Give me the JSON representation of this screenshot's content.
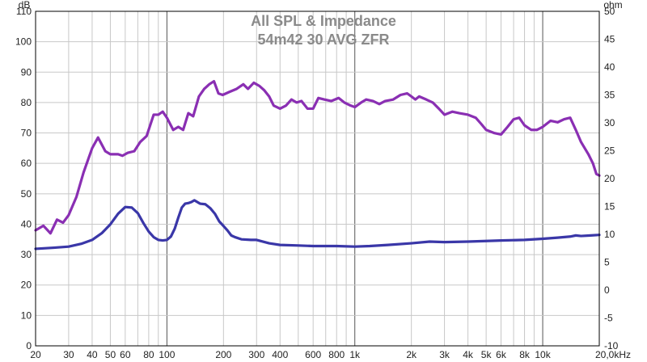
{
  "chart_data": {
    "type": "line",
    "title": "All SPL & Impedance",
    "subtitle": "54m42 30 AVG ZFR",
    "left_unit": "dB",
    "right_unit": "ohm",
    "x_scale": "log",
    "xlim": [
      20,
      20000
    ],
    "ylim_left": [
      0,
      110
    ],
    "ylim_right": [
      -10,
      50
    ],
    "grid": true,
    "x_ticks": [
      {
        "v": 20,
        "label": "20"
      },
      {
        "v": 30,
        "label": "30"
      },
      {
        "v": 40,
        "label": "40"
      },
      {
        "v": 50,
        "label": "50"
      },
      {
        "v": 60,
        "label": "60"
      },
      {
        "v": 80,
        "label": "80"
      },
      {
        "v": 100,
        "label": "100"
      },
      {
        "v": 200,
        "label": "200"
      },
      {
        "v": 300,
        "label": "300"
      },
      {
        "v": 400,
        "label": "400"
      },
      {
        "v": 600,
        "label": "600"
      },
      {
        "v": 800,
        "label": "800"
      },
      {
        "v": 1000,
        "label": "1k"
      },
      {
        "v": 2000,
        "label": "2k"
      },
      {
        "v": 3000,
        "label": "3k"
      },
      {
        "v": 4000,
        "label": "4k"
      },
      {
        "v": 5000,
        "label": "5k"
      },
      {
        "v": 6000,
        "label": "6k"
      },
      {
        "v": 8000,
        "label": "8k"
      },
      {
        "v": 10000,
        "label": "10k"
      },
      {
        "v": 20000,
        "label": "20,0kHz"
      }
    ],
    "left_ticks": [
      0,
      10,
      20,
      30,
      40,
      50,
      60,
      70,
      80,
      90,
      100,
      110
    ],
    "right_ticks": [
      -10,
      -5,
      0,
      5,
      10,
      15,
      20,
      25,
      30,
      35,
      40,
      45,
      50
    ],
    "series": [
      {
        "color": "#8a2fb3",
        "axis": "left",
        "points": [
          [
            20,
            38
          ],
          [
            22,
            39.5
          ],
          [
            24,
            37
          ],
          [
            26,
            41.5
          ],
          [
            28,
            40.5
          ],
          [
            30,
            43
          ],
          [
            33,
            49
          ],
          [
            36,
            57
          ],
          [
            40,
            65
          ],
          [
            43,
            68.5
          ],
          [
            47,
            64
          ],
          [
            50,
            63
          ],
          [
            55,
            63
          ],
          [
            58,
            62.5
          ],
          [
            62,
            63.5
          ],
          [
            67,
            64
          ],
          [
            72,
            67
          ],
          [
            78,
            69
          ],
          [
            85,
            76
          ],
          [
            90,
            76
          ],
          [
            95,
            77
          ],
          [
            100,
            75
          ],
          [
            108,
            71
          ],
          [
            115,
            72
          ],
          [
            122,
            71
          ],
          [
            130,
            76.5
          ],
          [
            138,
            75.5
          ],
          [
            148,
            82
          ],
          [
            158,
            84.5
          ],
          [
            168,
            86
          ],
          [
            178,
            87
          ],
          [
            188,
            83
          ],
          [
            198,
            82.5
          ],
          [
            215,
            83.5
          ],
          [
            235,
            84.5
          ],
          [
            255,
            86
          ],
          [
            270,
            84.5
          ],
          [
            290,
            86.5
          ],
          [
            310,
            85.5
          ],
          [
            330,
            84
          ],
          [
            350,
            82
          ],
          [
            370,
            79
          ],
          [
            400,
            78
          ],
          [
            430,
            79
          ],
          [
            460,
            81
          ],
          [
            490,
            80
          ],
          [
            520,
            80.5
          ],
          [
            560,
            78
          ],
          [
            600,
            78
          ],
          [
            640,
            81.5
          ],
          [
            690,
            81
          ],
          [
            750,
            80.5
          ],
          [
            820,
            81.5
          ],
          [
            880,
            80
          ],
          [
            950,
            79
          ],
          [
            1000,
            78.5
          ],
          [
            1080,
            80
          ],
          [
            1150,
            81
          ],
          [
            1250,
            80.5
          ],
          [
            1350,
            79.5
          ],
          [
            1450,
            80.5
          ],
          [
            1600,
            81
          ],
          [
            1750,
            82.5
          ],
          [
            1900,
            83
          ],
          [
            2000,
            82
          ],
          [
            2100,
            81
          ],
          [
            2200,
            82
          ],
          [
            2400,
            81
          ],
          [
            2600,
            80
          ],
          [
            2800,
            78
          ],
          [
            3000,
            76
          ],
          [
            3300,
            77
          ],
          [
            3600,
            76.5
          ],
          [
            4000,
            76
          ],
          [
            4400,
            75
          ],
          [
            4700,
            73
          ],
          [
            5000,
            71
          ],
          [
            5500,
            70
          ],
          [
            6000,
            69.5
          ],
          [
            6500,
            72
          ],
          [
            7000,
            74.5
          ],
          [
            7500,
            75
          ],
          [
            8000,
            72.5
          ],
          [
            8700,
            71
          ],
          [
            9300,
            71
          ],
          [
            10000,
            72
          ],
          [
            11000,
            74
          ],
          [
            12000,
            73.5
          ],
          [
            13000,
            74.5
          ],
          [
            14000,
            75
          ],
          [
            15000,
            71
          ],
          [
            16000,
            67
          ],
          [
            17500,
            63
          ],
          [
            18500,
            60
          ],
          [
            19300,
            56.5
          ],
          [
            20000,
            56
          ]
        ]
      },
      {
        "color": "#3a37a8",
        "axis": "right",
        "points": [
          [
            20,
            7.4
          ],
          [
            25,
            7.6
          ],
          [
            30,
            7.8
          ],
          [
            35,
            8.3
          ],
          [
            40,
            9.0
          ],
          [
            45,
            10.2
          ],
          [
            50,
            11.8
          ],
          [
            55,
            13.7
          ],
          [
            60,
            14.9
          ],
          [
            65,
            14.8
          ],
          [
            70,
            13.8
          ],
          [
            75,
            12.0
          ],
          [
            80,
            10.5
          ],
          [
            85,
            9.5
          ],
          [
            90,
            9.0
          ],
          [
            95,
            8.9
          ],
          [
            100,
            9.0
          ],
          [
            105,
            9.6
          ],
          [
            110,
            11.0
          ],
          [
            115,
            13.0
          ],
          [
            120,
            14.8
          ],
          [
            125,
            15.5
          ],
          [
            130,
            15.6
          ],
          [
            135,
            15.8
          ],
          [
            140,
            16.1
          ],
          [
            150,
            15.5
          ],
          [
            160,
            15.4
          ],
          [
            170,
            14.7
          ],
          [
            180,
            13.7
          ],
          [
            190,
            12.3
          ],
          [
            200,
            11.5
          ],
          [
            210,
            10.7
          ],
          [
            220,
            9.8
          ],
          [
            230,
            9.5
          ],
          [
            250,
            9.1
          ],
          [
            280,
            9.0
          ],
          [
            300,
            9.0
          ],
          [
            350,
            8.4
          ],
          [
            400,
            8.1
          ],
          [
            500,
            8.0
          ],
          [
            600,
            7.9
          ],
          [
            800,
            7.9
          ],
          [
            1000,
            7.8
          ],
          [
            1200,
            7.9
          ],
          [
            1500,
            8.1
          ],
          [
            2000,
            8.4
          ],
          [
            2500,
            8.7
          ],
          [
            3000,
            8.6
          ],
          [
            4000,
            8.7
          ],
          [
            5000,
            8.8
          ],
          [
            6000,
            8.9
          ],
          [
            8000,
            9.0
          ],
          [
            10000,
            9.2
          ],
          [
            12000,
            9.4
          ],
          [
            14000,
            9.6
          ],
          [
            15000,
            9.8
          ],
          [
            16000,
            9.7
          ],
          [
            18000,
            9.8
          ],
          [
            20000,
            9.9
          ]
        ]
      }
    ]
  }
}
